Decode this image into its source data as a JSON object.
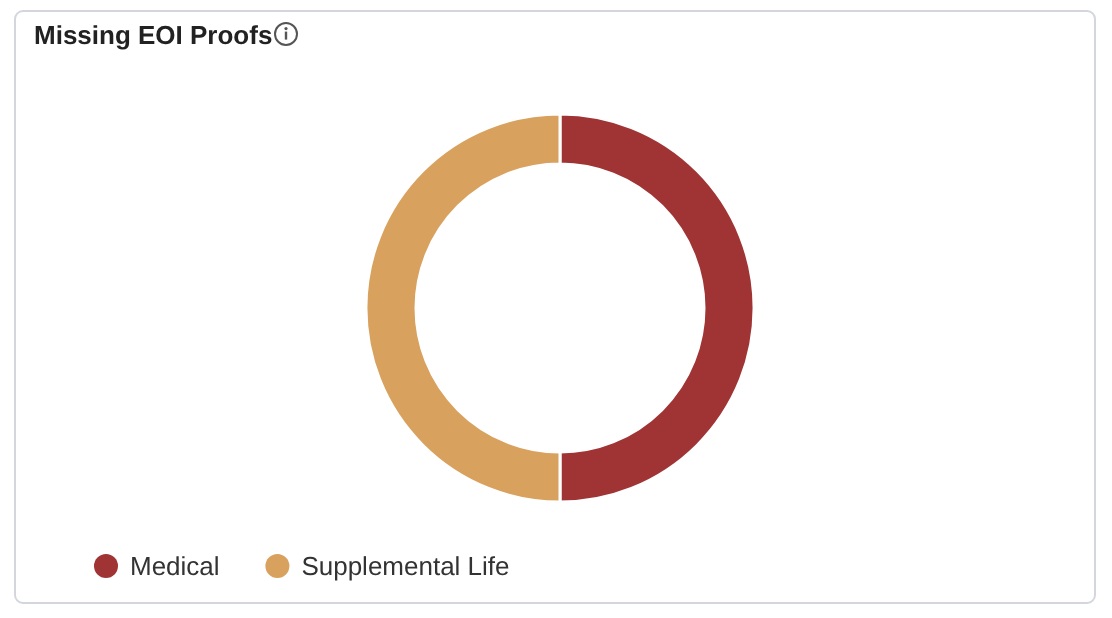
{
  "chart_data": {
    "type": "donut",
    "title": "Missing EOI Proofs",
    "categories": [
      "Medical",
      "Supplemental Life"
    ],
    "values": [
      50,
      50
    ],
    "colors": [
      "#a03434",
      "#d9a15e"
    ],
    "legend": "bottom left"
  }
}
